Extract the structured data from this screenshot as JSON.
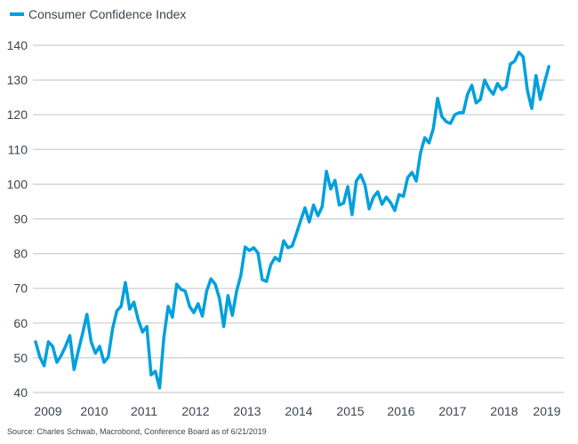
{
  "chart_data": {
    "type": "line",
    "title": "",
    "legend": {
      "position": "top-left",
      "entries": [
        "Consumer Confidence Index"
      ]
    },
    "xlabel": "",
    "ylabel": "",
    "ylim": [
      40,
      140
    ],
    "yticks": [
      40,
      50,
      60,
      70,
      80,
      90,
      100,
      110,
      120,
      130,
      140
    ],
    "xticks": [
      "2009",
      "2010",
      "2011",
      "2012",
      "2013",
      "2014",
      "2015",
      "2016",
      "2017",
      "2018",
      "2019"
    ],
    "x_start": "2009-01",
    "x_frequency": "monthly",
    "grid": "horizontal",
    "series": [
      {
        "name": "Consumer Confidence Index",
        "color": "#00a0dd",
        "values": [
          54.6,
          50.2,
          47.7,
          54.6,
          53.3,
          48.7,
          50.7,
          53.3,
          56.4,
          46.6,
          52.0,
          57.0,
          62.5,
          54.6,
          51.3,
          53.3,
          48.7,
          50.2,
          58.4,
          63.5,
          64.8,
          71.7,
          64.0,
          66.0,
          61.0,
          57.4,
          59.0,
          45.1,
          46.1,
          41.3,
          55.9,
          64.8,
          61.7,
          71.2,
          69.7,
          69.2,
          64.8,
          63.0,
          65.6,
          62.0,
          69.2,
          72.7,
          71.2,
          67.1,
          59.0,
          67.9,
          62.2,
          69.2,
          73.8,
          81.9,
          80.9,
          81.7,
          80.2,
          72.5,
          72.0,
          76.8,
          78.9,
          77.9,
          83.7,
          81.7,
          82.2,
          85.8,
          89.6,
          93.2,
          89.1,
          94.0,
          90.9,
          93.5,
          103.7,
          98.6,
          101.1,
          94.0,
          94.5,
          99.3,
          91.2,
          100.9,
          102.7,
          99.8,
          92.9,
          96.3,
          97.8,
          94.2,
          96.3,
          94.7,
          92.4,
          97.0,
          96.5,
          101.9,
          103.4,
          100.9,
          109.0,
          113.4,
          111.9,
          116.0,
          124.7,
          119.5,
          118.0,
          117.5,
          120.0,
          120.6,
          120.6,
          125.9,
          128.5,
          123.4,
          124.4,
          130.0,
          127.5,
          125.9,
          129.0,
          127.2,
          128.0,
          134.6,
          135.4,
          138.0,
          136.7,
          127.0,
          121.8,
          131.3,
          124.4,
          129.3,
          133.9
        ]
      }
    ]
  },
  "legend_label": "Consumer Confidence Index",
  "source_note": "Source: Charles Schwab, Macrobond, Conference Board as of 6/21/2019"
}
